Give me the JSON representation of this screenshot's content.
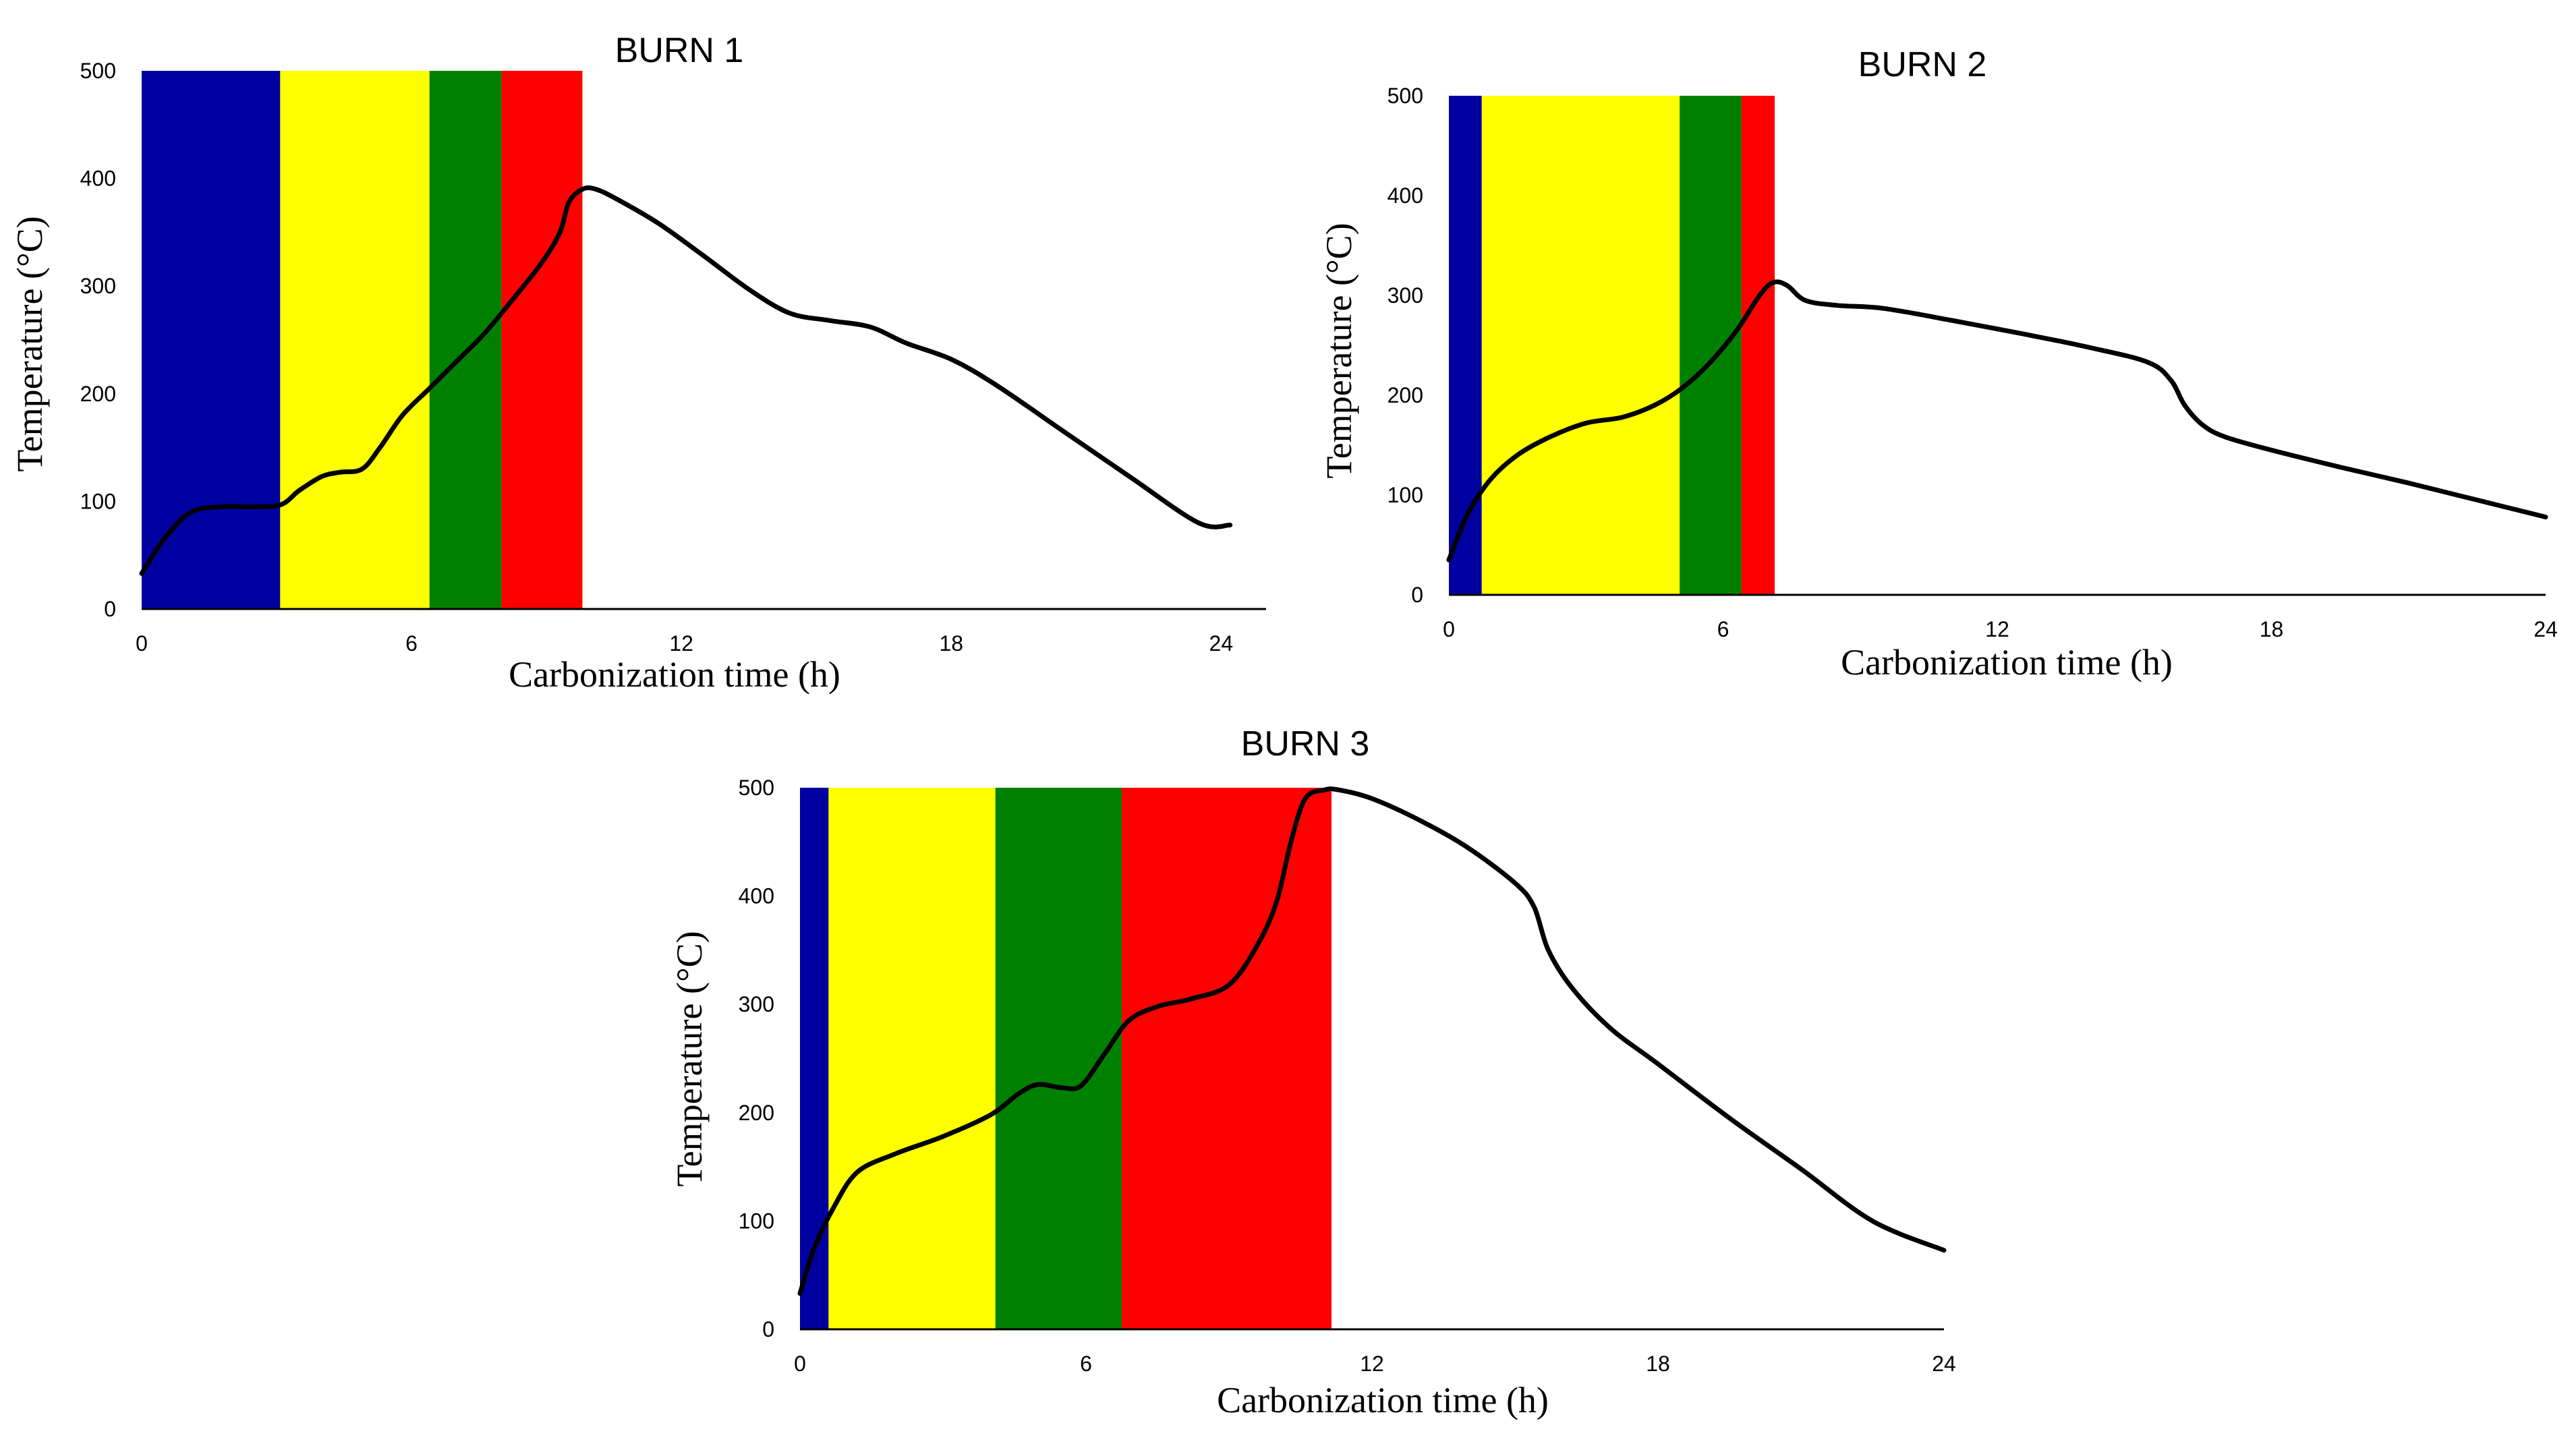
{
  "chart_data": [
    {
      "type": "line",
      "title": "BURN 1",
      "xlabel": "Carbonization time (h)",
      "ylabel": "Temperature (°C)",
      "xlim": [
        0,
        25
      ],
      "ylim": [
        0,
        500
      ],
      "xticks": [
        0,
        6,
        12,
        18,
        24
      ],
      "yticks": [
        0,
        100,
        200,
        300,
        400,
        500
      ],
      "grid": false,
      "phases": [
        {
          "start": 0,
          "end": 3.08,
          "color": "#0000a0"
        },
        {
          "start": 3.08,
          "end": 6.4,
          "color": "#ffff00"
        },
        {
          "start": 6.4,
          "end": 8.0,
          "color": "#008000"
        },
        {
          "start": 8.0,
          "end": 9.8,
          "color": "#ff0000"
        }
      ],
      "series": [
        {
          "name": "Temperature",
          "x": [
            0,
            0.5,
            1.1,
            1.8,
            2.5,
            3.1,
            3.5,
            4.0,
            4.4,
            4.9,
            5.3,
            5.8,
            6.4,
            7.0,
            7.6,
            8.2,
            8.9,
            9.3,
            9.5,
            9.8,
            10.1,
            10.6,
            11.5,
            12.5,
            13.5,
            14.4,
            15.3,
            16.2,
            17.0,
            18.0,
            19.0,
            20.5,
            22.0,
            23.5,
            24.2
          ],
          "values": [
            33,
            65,
            90,
            95,
            95,
            97,
            110,
            123,
            127,
            130,
            150,
            180,
            205,
            230,
            255,
            285,
            322,
            350,
            378,
            390,
            390,
            380,
            358,
            328,
            297,
            275,
            268,
            262,
            247,
            232,
            208,
            165,
            122,
            80,
            78
          ]
        }
      ]
    },
    {
      "type": "line",
      "title": "BURN 2",
      "xlabel": "Carbonization time (h)",
      "ylabel": "Temperature (°C)",
      "xlim": [
        0,
        24
      ],
      "ylim": [
        0,
        500
      ],
      "xticks": [
        0,
        6,
        12,
        18,
        24
      ],
      "yticks": [
        0,
        100,
        200,
        300,
        400,
        500
      ],
      "grid": false,
      "phases": [
        {
          "start": 0,
          "end": 0.72,
          "color": "#0000a0"
        },
        {
          "start": 0.72,
          "end": 5.05,
          "color": "#ffff00"
        },
        {
          "start": 5.05,
          "end": 6.4,
          "color": "#008000"
        },
        {
          "start": 6.4,
          "end": 7.13,
          "color": "#ff0000"
        }
      ],
      "series": [
        {
          "name": "Temperature",
          "x": [
            0,
            0.4,
            0.9,
            1.5,
            2.2,
            3.0,
            3.8,
            4.5,
            5.1,
            5.7,
            6.3,
            6.8,
            7.1,
            7.4,
            7.8,
            8.5,
            9.5,
            11.0,
            12.5,
            14.0,
            15.3,
            15.8,
            16.1,
            16.5,
            17.0,
            18.0,
            19.5,
            21.0,
            22.5,
            24.0
          ],
          "values": [
            35,
            80,
            115,
            140,
            158,
            172,
            178,
            190,
            207,
            232,
            265,
            300,
            313,
            310,
            295,
            290,
            287,
            275,
            262,
            248,
            233,
            215,
            190,
            170,
            158,
            145,
            128,
            112,
            95,
            78
          ]
        }
      ]
    },
    {
      "type": "line",
      "title": "",
      "xlabel": "Carbonization time (h)",
      "ylabel": "Temperature (°C)",
      "xlim": [
        0,
        24
      ],
      "ylim": [
        0,
        500
      ],
      "xticks": [
        0,
        6,
        12,
        18,
        24
      ],
      "yticks": [
        0,
        100,
        200,
        300,
        400,
        500
      ],
      "grid": false,
      "phases": [
        {
          "start": 0,
          "end": 0.6,
          "color": "#0000a0"
        },
        {
          "start": 0.6,
          "end": 4.1,
          "color": "#ffff00"
        },
        {
          "start": 4.1,
          "end": 6.75,
          "color": "#008000"
        },
        {
          "start": 6.75,
          "end": 11.15,
          "color": "#ff0000"
        }
      ],
      "series": [
        {
          "name": "Temperature",
          "x": [
            0,
            0.3,
            0.7,
            1.2,
            2.0,
            3.0,
            4.0,
            4.6,
            5.0,
            5.5,
            5.9,
            6.4,
            6.9,
            7.5,
            8.2,
            9.0,
            9.6,
            10.0,
            10.3,
            10.6,
            11.0,
            11.3,
            12.0,
            13.0,
            14.0,
            15.0,
            15.4,
            15.7,
            16.2,
            17.0,
            18.0,
            19.5,
            21.0,
            22.5,
            24.0
          ],
          "values": [
            33,
            75,
            112,
            145,
            162,
            178,
            198,
            218,
            226,
            223,
            225,
            255,
            285,
            298,
            305,
            318,
            355,
            395,
            450,
            490,
            498,
            498,
            490,
            470,
            445,
            412,
            390,
            350,
            315,
            278,
            245,
            195,
            148,
            100,
            73
          ]
        }
      ]
    }
  ],
  "extra_titles": [
    {
      "chart": 2,
      "text": "BURN 3"
    }
  ]
}
